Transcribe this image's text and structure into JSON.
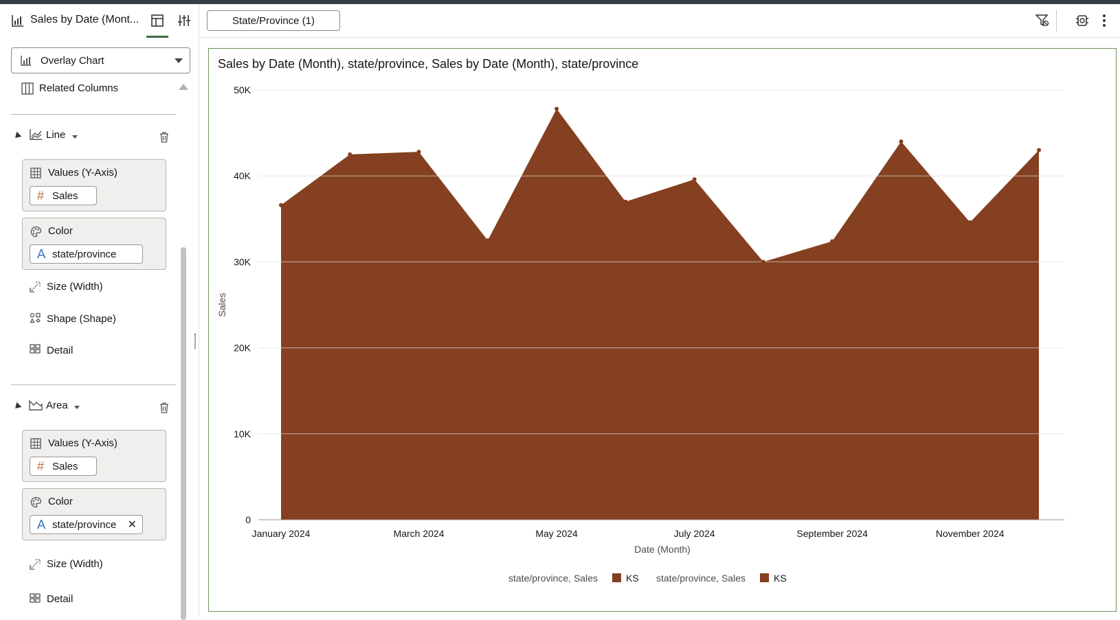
{
  "panel": {
    "title": "Sales by Date (Mont...",
    "chart_type_dropdown": "Overlay Chart",
    "related_columns": "Related Columns",
    "sections": [
      {
        "name": "Line",
        "values_label": "Values (Y-Axis)",
        "values_pill": "Sales",
        "color_label": "Color",
        "color_pill": "state/province",
        "size_label": "Size (Width)",
        "shape_label": "Shape (Shape)",
        "detail_label": "Detail"
      },
      {
        "name": "Area",
        "values_label": "Values (Y-Axis)",
        "values_pill": "Sales",
        "color_label": "Color",
        "color_pill": "state/province",
        "size_label": "Size (Width)",
        "detail_label": "Detail"
      }
    ]
  },
  "topbar": {
    "filter_pill": "State/Province (1)"
  },
  "colors": {
    "area_fill": "#844020",
    "accent_green": "#3d6b3f",
    "grid": "#e3e1de"
  },
  "chart_data": {
    "type": "area",
    "title": "Sales by Date (Month), state/province, Sales by Date (Month), state/province",
    "xlabel": "Date (Month)",
    "ylabel": "Sales",
    "ylim": [
      0,
      50000
    ],
    "yticks": [
      "0",
      "10K",
      "20K",
      "30K",
      "40K",
      "50K"
    ],
    "xtick_labels": [
      "January 2024",
      "March 2024",
      "May 2024",
      "July 2024",
      "September 2024",
      "November 2024"
    ],
    "x": [
      "January 2024",
      "February 2024",
      "March 2024",
      "April 2024",
      "May 2024",
      "June 2024",
      "July 2024",
      "August 2024",
      "September 2024",
      "October 2024",
      "November 2024",
      "December 2024"
    ],
    "series": [
      {
        "name": "KS",
        "values": [
          36600,
          42500,
          42800,
          32500,
          47800,
          37000,
          39600,
          30000,
          32400,
          44000,
          34600,
          43000
        ]
      }
    ],
    "legend": [
      {
        "label": "state/province, Sales",
        "item": "KS"
      },
      {
        "label": "state/province, Sales",
        "item": "KS"
      }
    ],
    "legend_position": "bottom",
    "grid": true
  }
}
